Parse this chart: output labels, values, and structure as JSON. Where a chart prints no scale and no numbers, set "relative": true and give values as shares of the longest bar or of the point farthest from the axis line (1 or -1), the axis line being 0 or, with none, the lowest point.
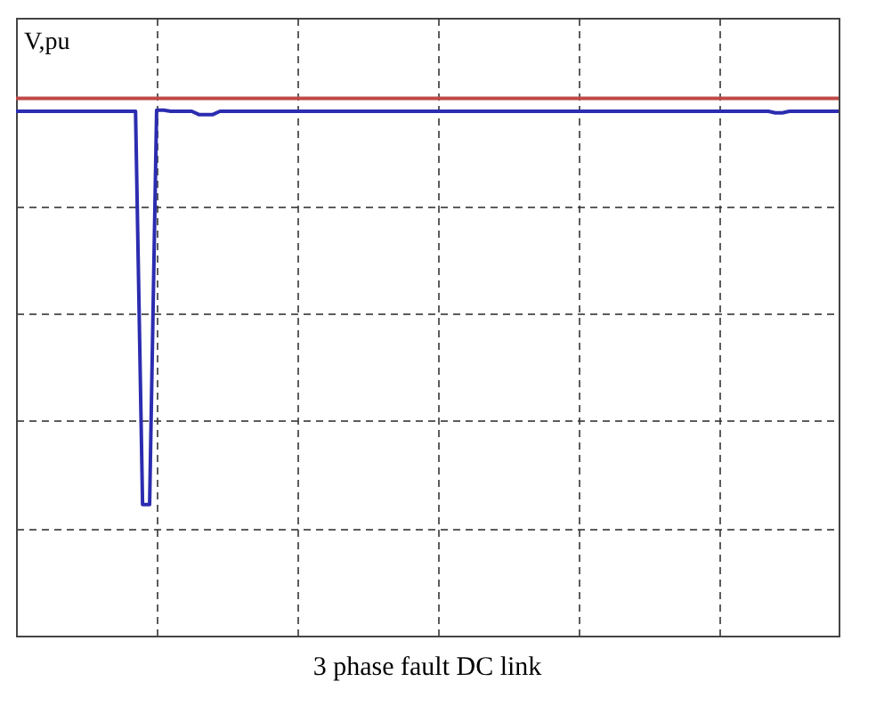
{
  "chart_data": {
    "type": "line",
    "title": "3 phase fault DC link",
    "ylabel": "V,pu",
    "relative": true,
    "grid": true,
    "categories": [
      null,
      null,
      null,
      null,
      null,
      null,
      null,
      null,
      null,
      null,
      null,
      null,
      null,
      null,
      null,
      null,
      null,
      null,
      null,
      null,
      null,
      null,
      null,
      null,
      null,
      null,
      null,
      null,
      null,
      null,
      null,
      null,
      null,
      null,
      null,
      null,
      null,
      null,
      null,
      null,
      null,
      null,
      null,
      null,
      null,
      null,
      null,
      null,
      null,
      null,
      null,
      null,
      null,
      null,
      null,
      null,
      null,
      null,
      null,
      null,
      null,
      null,
      null,
      null,
      null,
      null,
      null,
      null,
      null,
      null,
      null,
      null,
      null,
      null,
      null,
      null,
      null,
      null,
      null,
      null,
      null,
      null,
      null,
      null,
      null,
      null,
      null,
      null,
      null,
      null,
      null,
      null,
      null,
      null,
      null,
      null,
      null,
      null,
      null,
      null,
      null,
      null,
      null,
      null,
      null,
      null,
      null,
      null,
      null,
      null,
      null,
      null,
      null,
      null,
      null,
      null,
      null,
      null
    ],
    "series": [
      {
        "color": "#c04848",
        "values": [
          1,
          1,
          1,
          1,
          1,
          1,
          1,
          1,
          1,
          1,
          1,
          1,
          1,
          1,
          1,
          1,
          1,
          1,
          1,
          1,
          1,
          1,
          1,
          1,
          1,
          1,
          1,
          1,
          1,
          1,
          1,
          1,
          1,
          1,
          1,
          1,
          1,
          1,
          1,
          1,
          1,
          1,
          1,
          1,
          1,
          1,
          1,
          1,
          1,
          1,
          1,
          1,
          1,
          1,
          1,
          1,
          1,
          1,
          1,
          1,
          1,
          1,
          1,
          1,
          1,
          1,
          1,
          1,
          1,
          1,
          1,
          1,
          1,
          1,
          1,
          1,
          1,
          1,
          1,
          1,
          1,
          1,
          1,
          1,
          1,
          1,
          1,
          1,
          1,
          1,
          1,
          1,
          1,
          1,
          1,
          1,
          1,
          1,
          1,
          1,
          1,
          1,
          1,
          1,
          1,
          1,
          1,
          1,
          1,
          1,
          1,
          1,
          1,
          1,
          1,
          1,
          1,
          1
        ]
      },
      {
        "color": "#2c2cb0",
        "values": [
          0.976,
          0.976,
          0.976,
          0.976,
          0.976,
          0.976,
          0.976,
          0.976,
          0.976,
          0.976,
          0.976,
          0.976,
          0.976,
          0.976,
          0.976,
          0.976,
          0.976,
          0.976,
          0.244,
          0.244,
          0.978,
          0.978,
          0.976,
          0.976,
          0.976,
          0.976,
          0.97,
          0.97,
          0.97,
          0.976,
          0.976,
          0.976,
          0.976,
          0.976,
          0.976,
          0.976,
          0.976,
          0.976,
          0.976,
          0.976,
          0.976,
          0.976,
          0.976,
          0.976,
          0.976,
          0.976,
          0.976,
          0.976,
          0.976,
          0.976,
          0.976,
          0.976,
          0.976,
          0.976,
          0.976,
          0.976,
          0.976,
          0.976,
          0.976,
          0.976,
          0.976,
          0.976,
          0.976,
          0.976,
          0.976,
          0.976,
          0.976,
          0.976,
          0.976,
          0.976,
          0.976,
          0.976,
          0.976,
          0.976,
          0.976,
          0.976,
          0.976,
          0.976,
          0.976,
          0.976,
          0.976,
          0.976,
          0.976,
          0.976,
          0.976,
          0.976,
          0.976,
          0.976,
          0.976,
          0.976,
          0.976,
          0.976,
          0.976,
          0.976,
          0.976,
          0.976,
          0.976,
          0.976,
          0.976,
          0.976,
          0.976,
          0.976,
          0.976,
          0.976,
          0.976,
          0.976,
          0.976,
          0.976,
          0.973,
          0.973,
          0.976,
          0.976,
          0.976,
          0.976,
          0.976,
          0.976,
          0.976,
          0.976
        ]
      }
    ]
  }
}
